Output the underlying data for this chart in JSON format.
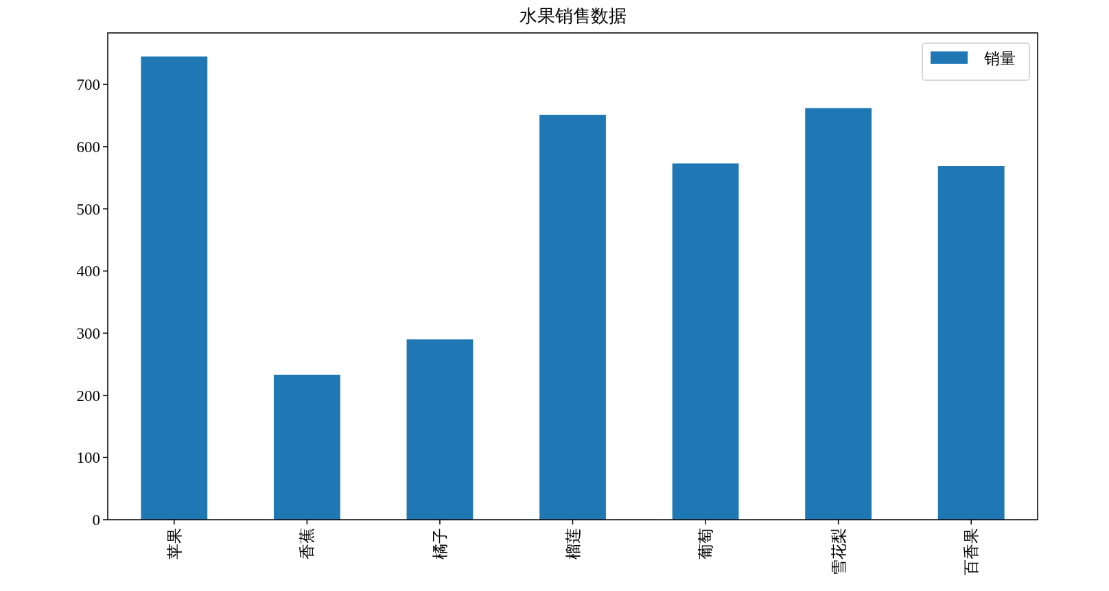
{
  "chart_data": {
    "type": "bar",
    "title": "水果销售数据",
    "categories": [
      "苹果",
      "香蕉",
      "橘子",
      "榴莲",
      "葡萄",
      "雪花梨",
      "百香果"
    ],
    "series": [
      {
        "name": "销量",
        "color": "#1f77b4",
        "values": [
          745,
          233,
          290,
          651,
          573,
          662,
          569
        ]
      }
    ],
    "ylim": [
      0,
      783
    ],
    "yticks": [
      0,
      100,
      200,
      300,
      400,
      500,
      600,
      700
    ],
    "legend": "top right",
    "grid": false
  }
}
